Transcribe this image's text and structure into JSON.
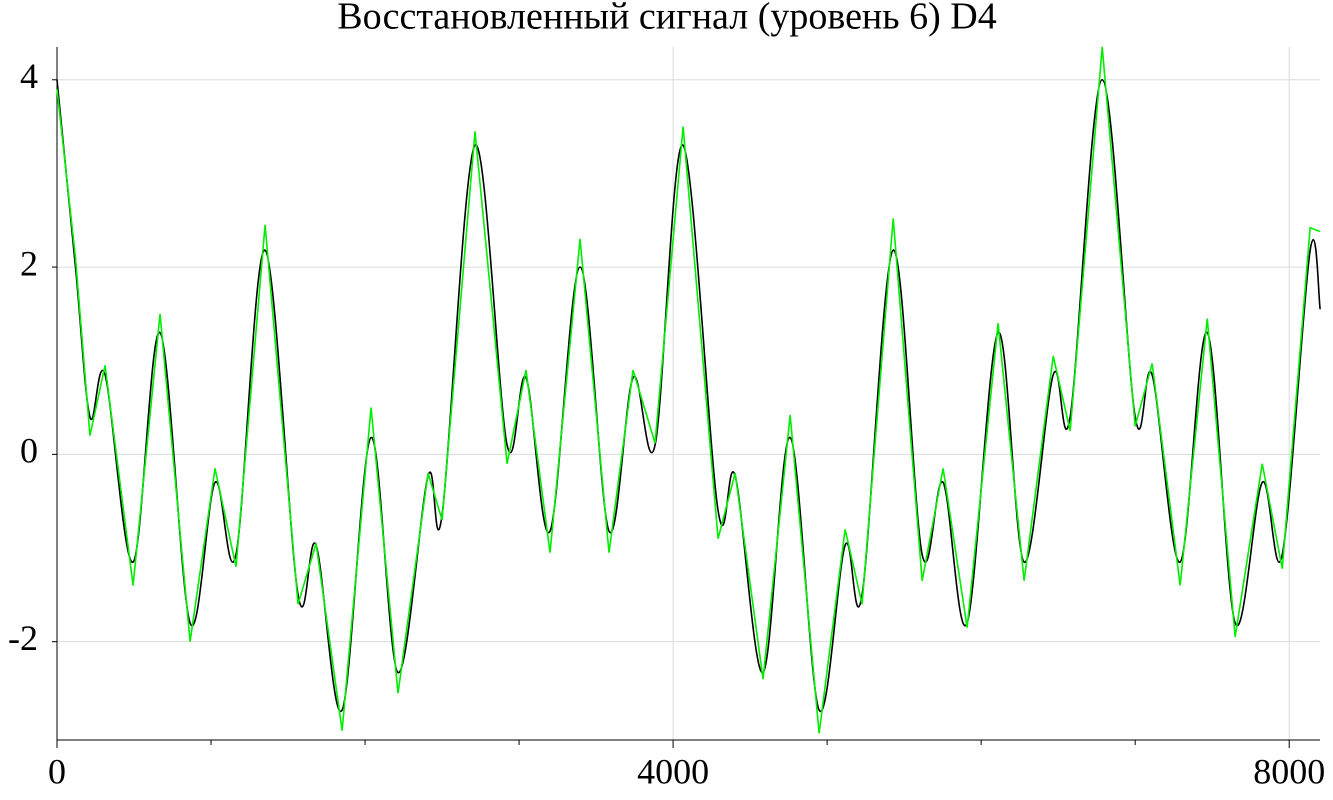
{
  "chart_data": {
    "type": "line",
    "title": "Восстановленный сигнал (уровень 6) D4",
    "x": [
      0,
      120,
      214,
      312,
      494,
      669,
      864,
      1026,
      1162,
      1351,
      1565,
      1682,
      1851,
      2039,
      2214,
      2409,
      2500,
      2714,
      2922,
      3045,
      3201,
      3396,
      3584,
      3740,
      3883,
      4065,
      4292,
      4403,
      4584,
      4760,
      4948,
      5117,
      5227,
      5429,
      5617,
      5753,
      5909,
      6110,
      6279,
      6468,
      6578,
      6786,
      7000,
      7110,
      7292,
      7468,
      7649,
      7825,
      7955,
      8136,
      8201
    ],
    "series": [
      {
        "color": "#000000",
        "smooth": true,
        "values": [
          4.0,
          2.0,
          0.4,
          0.85,
          -1.15,
          1.3,
          -1.8,
          -0.3,
          -1.07,
          2.18,
          -1.5,
          -0.97,
          -2.73,
          0.18,
          -2.33,
          -0.23,
          -0.65,
          3.3,
          0.1,
          0.82,
          -0.82,
          2.0,
          -0.82,
          0.82,
          0.1,
          3.3,
          -0.6,
          -0.23,
          -2.33,
          0.18,
          -2.73,
          -0.97,
          -1.5,
          2.18,
          -1.07,
          -0.3,
          -1.8,
          1.3,
          -1.15,
          0.85,
          0.4,
          4.0,
          0.4,
          0.85,
          -1.15,
          1.3,
          -1.8,
          -0.3,
          -1.07,
          2.18,
          1.55
        ]
      },
      {
        "color": "#00ee00",
        "smooth": false,
        "values": [
          3.9,
          2.1,
          0.2,
          0.95,
          -1.4,
          1.5,
          -2.0,
          -0.15,
          -1.2,
          2.45,
          -1.6,
          -0.95,
          -2.95,
          0.5,
          -2.55,
          -0.2,
          -0.7,
          3.45,
          -0.1,
          0.9,
          -1.05,
          2.3,
          -1.05,
          0.9,
          0.12,
          3.5,
          -0.9,
          -0.2,
          -2.4,
          0.42,
          -2.98,
          -0.8,
          -1.6,
          2.52,
          -1.35,
          -0.15,
          -1.85,
          1.4,
          -1.35,
          1.05,
          0.25,
          4.35,
          0.3,
          0.97,
          -1.4,
          1.45,
          -1.95,
          -0.1,
          -1.22,
          2.42,
          2.38
        ]
      }
    ],
    "xlim": [
      0,
      8200
    ],
    "xticks": [
      0,
      4000,
      8000
    ],
    "xminor_ticks": [
      1000,
      2000,
      3000,
      5000,
      6000,
      7000
    ],
    "ylim": [
      -3.05,
      4.35
    ],
    "yticks": [
      -2,
      0,
      2,
      4
    ],
    "grid": true
  }
}
